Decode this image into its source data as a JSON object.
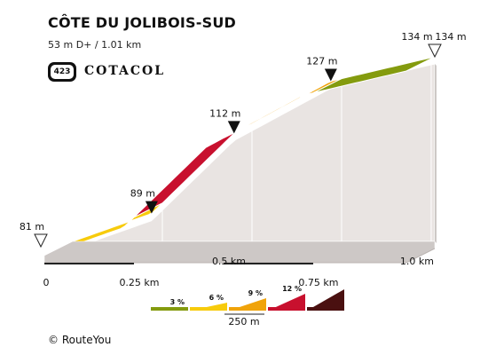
{
  "header": {
    "title": "CÔTE DU JOLIBOIS-SUD",
    "subtitle": "53 m D+ / 1.01 km"
  },
  "brand": {
    "badge_number": "423",
    "name": "COTACOL"
  },
  "footer": {
    "copyright": "© RouteYou"
  },
  "chart_data": {
    "type": "area",
    "title": "CÔTE DU JOLIBOIS-SUD",
    "xlabel": "",
    "ylabel": "",
    "x_unit": "km",
    "y_unit": "m",
    "x_ticks": [
      {
        "value": 0,
        "label": "0"
      },
      {
        "value": 0.25,
        "label": "0.25 km"
      },
      {
        "value": 0.5,
        "label": "0.5 km"
      },
      {
        "value": 0.75,
        "label": "0.75 km"
      },
      {
        "value": 1.0,
        "label": "1.0 km"
      }
    ],
    "profile_points": [
      {
        "x": 0,
        "y": 81,
        "label": "81 m",
        "marker": "start"
      },
      {
        "x": 0.22,
        "y": 89,
        "label": "89 m",
        "marker": "peak"
      },
      {
        "x": 0.45,
        "y": 112,
        "label": "112 m",
        "marker": "peak"
      },
      {
        "x": 0.72,
        "y": 127,
        "label": "127 m",
        "marker": "peak"
      },
      {
        "x": 1.01,
        "y": 134,
        "label": "134 m",
        "marker": "end"
      }
    ],
    "end_peak_label": "134 m",
    "segments": [
      {
        "from": 0,
        "to": 0.25,
        "y_from": 81,
        "y_to": 89,
        "color": "#F7CB0C"
      },
      {
        "from": 0.25,
        "to": 0.5,
        "y_from": 89,
        "y_to": 112,
        "color": "#C8102E"
      },
      {
        "from": 0.5,
        "to": 0.75,
        "y_from": 112,
        "y_to": 127,
        "color": "#F0A30A"
      },
      {
        "from": 0.75,
        "to": 1.01,
        "y_from": 127,
        "y_to": 134,
        "color": "#849B0E"
      }
    ],
    "ylim": [
      81,
      134
    ],
    "xlim": [
      0,
      1.01
    ],
    "gradient_legend": {
      "items": [
        {
          "label": "3 %",
          "color": "#849B0E"
        },
        {
          "label": "6 %",
          "color": "#F7CB0C"
        },
        {
          "label": "9 %",
          "color": "#F0A30A"
        },
        {
          "label": "12 %",
          "color": "#C8102E"
        },
        {
          "label": "",
          "color": "#4A1010"
        }
      ],
      "scale_label": "250 m"
    },
    "colors": {
      "ground_face": "#e9e4e2",
      "ground_top": "#cdc8c6",
      "ground_dark": "#444444",
      "marker": "#111111"
    }
  }
}
